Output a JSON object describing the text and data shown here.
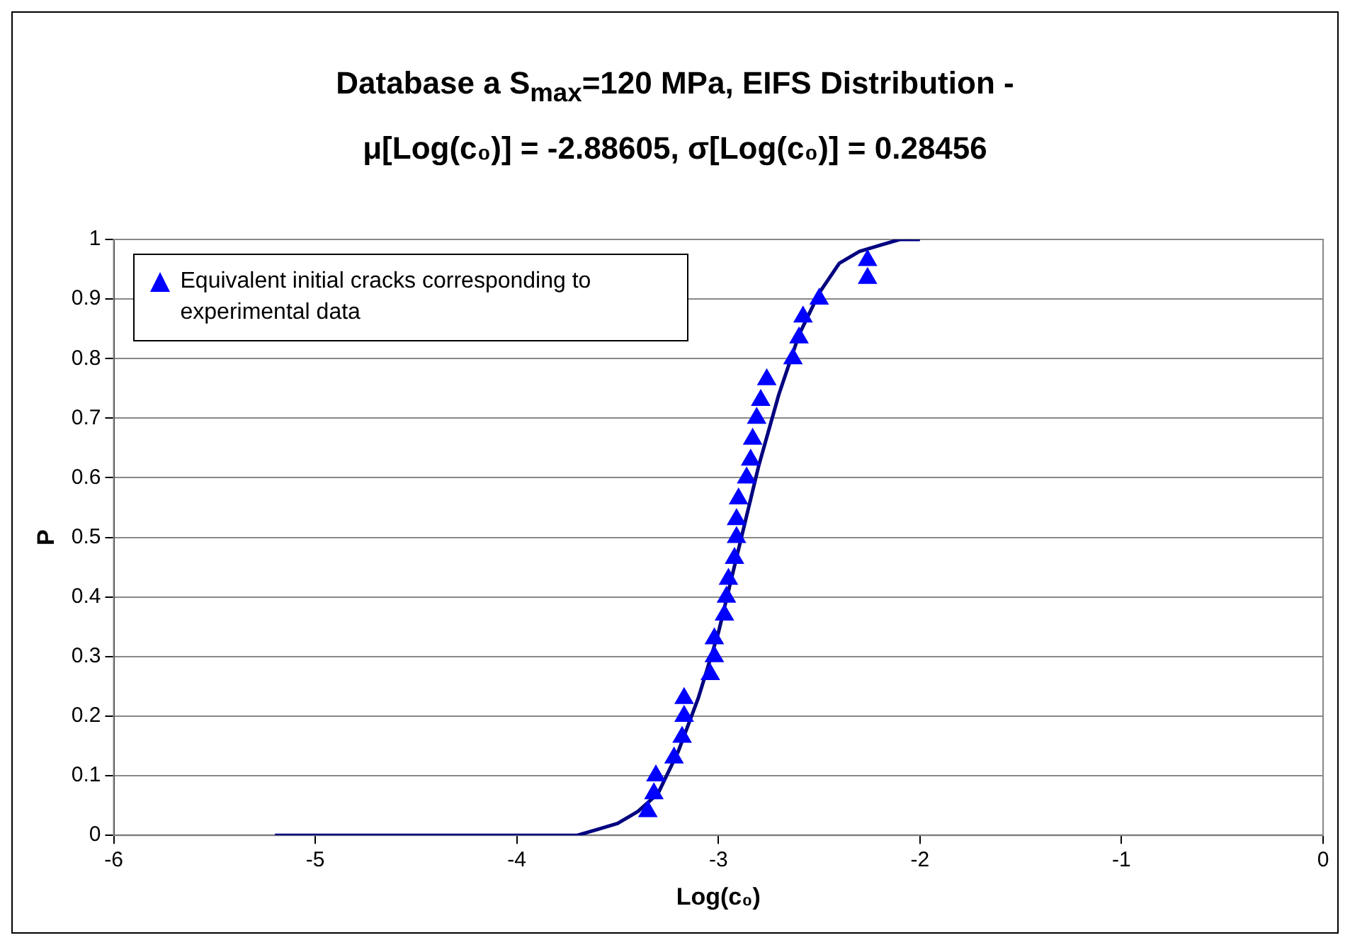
{
  "chart_data": {
    "type": "scatter",
    "title": "Database a S$_{max}$=120 MPa, EIFS Distribution -\nμ[Log(c₀)] = -2.88605, σ[Log(c₀)] = 0.28456",
    "xlabel": "Log(c₀)",
    "ylabel": "P",
    "series": [
      {
        "name": "Equivalent initial cracks corresponding to experimental data",
        "color": "#0000ff",
        "marker": "triangle",
        "x": [
          -3.35,
          -3.32,
          -3.31,
          -3.22,
          -3.18,
          -3.17,
          -3.17,
          -3.04,
          -3.02,
          -3.02,
          -2.97,
          -2.96,
          -2.95,
          -2.92,
          -2.91,
          -2.91,
          -2.9,
          -2.86,
          -2.84,
          -2.83,
          -2.81,
          -2.79,
          -2.76,
          -2.63,
          -2.6,
          -2.58,
          -2.5,
          -2.26,
          -2.26
        ],
        "values": [
          0.04,
          0.07,
          0.1,
          0.13,
          0.165,
          0.2,
          0.23,
          0.27,
          0.3,
          0.33,
          0.37,
          0.4,
          0.43,
          0.465,
          0.5,
          0.53,
          0.565,
          0.6,
          0.63,
          0.665,
          0.7,
          0.73,
          0.765,
          0.8,
          0.835,
          0.87,
          0.9,
          0.935,
          0.965
        ]
      },
      {
        "type": "line",
        "color": "#000080",
        "marker": "none",
        "x": [
          -5.2,
          -3.8,
          -3.7,
          -3.6,
          -3.5,
          -3.4,
          -3.3,
          -3.2,
          -3.1,
          -3.0,
          -2.9,
          -2.8,
          -2.7,
          -2.6,
          -2.5,
          -2.4,
          -2.3,
          -2.2,
          -2.1,
          -2.0
        ],
        "values": [
          0,
          0,
          0,
          0.01,
          0.02,
          0.04,
          0.07,
          0.14,
          0.23,
          0.34,
          0.48,
          0.62,
          0.74,
          0.84,
          0.91,
          0.96,
          0.98,
          0.99,
          1,
          1
        ]
      }
    ],
    "xlim": [
      -6,
      0
    ],
    "xticks": [
      -6,
      -5,
      -4,
      -3,
      -2,
      -1,
      0
    ],
    "ylim": [
      0,
      1
    ],
    "yticks": [
      0,
      0.1,
      0.2,
      0.3,
      0.4,
      0.5,
      0.6,
      0.7,
      0.8,
      0.9,
      1
    ],
    "grid": "y",
    "legend": "top left"
  }
}
